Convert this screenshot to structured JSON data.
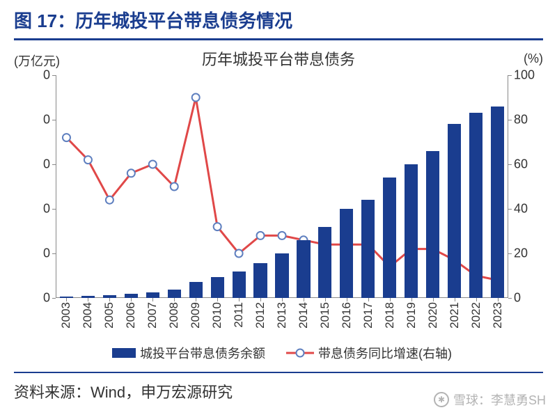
{
  "title": "图 17：历年城投平台带息债务情况",
  "chart": {
    "type": "bar+line",
    "title": "历年城投平台带息债务",
    "title_fontsize": 22,
    "background_color": "#ffffff",
    "left_axis": {
      "label": "(万亿元)",
      "unit_label_fontsize": 18,
      "ylim": [
        0,
        100
      ],
      "ticks": [
        0,
        20,
        40,
        60,
        80,
        100
      ],
      "tick_label": "0",
      "tick_fontsize": 18
    },
    "right_axis": {
      "label": "(%)",
      "unit_label_fontsize": 18,
      "ylim": [
        0,
        100
      ],
      "ticks": [
        0,
        20,
        40,
        60,
        80,
        100
      ],
      "tick_fontsize": 18
    },
    "categories": [
      "2003",
      "2004",
      "2005",
      "2006",
      "2007",
      "2008",
      "2009",
      "2010",
      "2011",
      "2012",
      "2013",
      "2014",
      "2015",
      "2016",
      "2017",
      "2018",
      "2019",
      "2020",
      "2021",
      "2022",
      "2023"
    ],
    "bars": {
      "label": "城投平台带息债务余额",
      "values_pct_of_left_max": [
        0.5,
        0.8,
        1.2,
        1.8,
        2.6,
        3.8,
        7.2,
        9.5,
        12,
        15.5,
        20,
        26,
        32,
        40,
        44,
        54,
        60,
        66,
        78,
        83,
        86
      ],
      "color": "#1a3d8f",
      "bar_width_ratio": 0.62
    },
    "line": {
      "label": "带息债务同比增速(右轴)",
      "values_pct_of_right_max": [
        72,
        62,
        44,
        56,
        60,
        50,
        90,
        32,
        20,
        28,
        28,
        26,
        24,
        24,
        24,
        14,
        22,
        22,
        17,
        10,
        8
      ],
      "color": "#e04848",
      "line_width": 3,
      "marker": {
        "shape": "circle",
        "radius": 5.5,
        "fill": "#ffffff",
        "stroke": "#5e7fbf",
        "stroke_width": 2
      }
    },
    "legend": {
      "position": "bottom",
      "fontsize": 18
    },
    "x_tick_rotation": "vertical",
    "x_tick_fontsize": 17,
    "accent_color": "#1a3d8f"
  },
  "footer": "资料来源：Wind，申万宏源研究",
  "footer_fontsize": 22,
  "watermark": "雪球：李慧勇SH"
}
